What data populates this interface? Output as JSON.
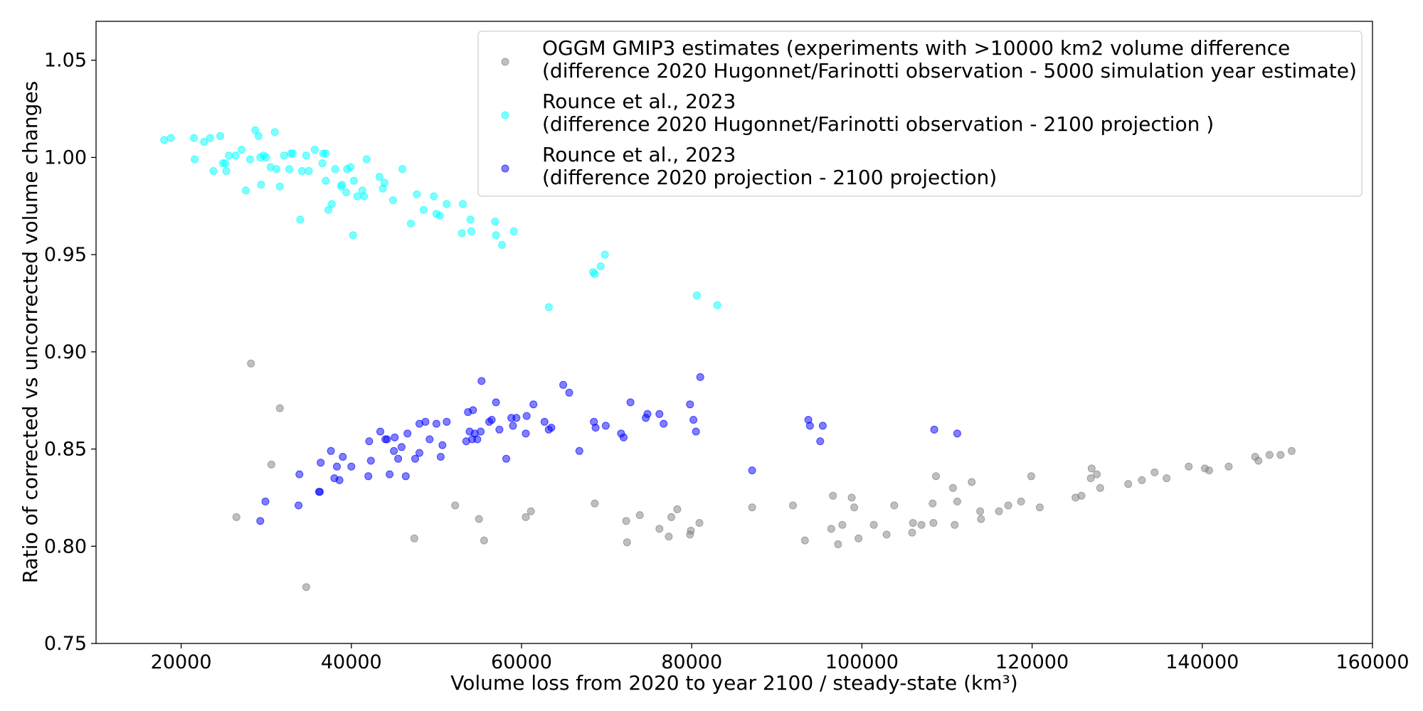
{
  "chart_data": {
    "type": "scatter",
    "title": "",
    "xlabel": "Volume loss from 2020 to year 2100 / steady-state (km³)",
    "ylabel": "Ratio of corrected vs uncorrected volume changes",
    "xlim": [
      10000,
      160000
    ],
    "ylim": [
      0.75,
      1.07
    ],
    "xticks": [
      20000,
      40000,
      60000,
      80000,
      100000,
      120000,
      140000,
      160000
    ],
    "yticks": [
      0.75,
      0.8,
      0.85,
      0.9,
      0.95,
      1.0,
      1.05
    ],
    "xtick_labels": [
      "20000",
      "40000",
      "60000",
      "80000",
      "100000",
      "120000",
      "140000",
      "160000"
    ],
    "ytick_labels": [
      "0.75",
      "0.80",
      "0.85",
      "0.90",
      "0.95",
      "1.00",
      "1.05"
    ],
    "grid": false,
    "legend_position": "top-right",
    "series": [
      {
        "name_lines": [
          "OGGM GMIP3 estimates (experiments with >10000 km2 volume difference",
          "(difference 2020 Hugonnet/Farinotti observation - 5000 simulation year estimate)"
        ],
        "color": "#808080",
        "points": [
          [
            26500,
            0.815
          ],
          [
            28200,
            0.894
          ],
          [
            30600,
            0.842
          ],
          [
            31600,
            0.871
          ],
          [
            34700,
            0.779
          ],
          [
            47400,
            0.804
          ],
          [
            52200,
            0.821
          ],
          [
            55000,
            0.814
          ],
          [
            55600,
            0.803
          ],
          [
            60500,
            0.815
          ],
          [
            61100,
            0.818
          ],
          [
            68600,
            0.822
          ],
          [
            72300,
            0.813
          ],
          [
            72400,
            0.802
          ],
          [
            73900,
            0.816
          ],
          [
            76200,
            0.809
          ],
          [
            77300,
            0.805
          ],
          [
            77600,
            0.815
          ],
          [
            78300,
            0.819
          ],
          [
            79800,
            0.806
          ],
          [
            79900,
            0.808
          ],
          [
            80900,
            0.812
          ],
          [
            87100,
            0.82
          ],
          [
            91900,
            0.821
          ],
          [
            93300,
            0.803
          ],
          [
            96400,
            0.809
          ],
          [
            96600,
            0.826
          ],
          [
            97200,
            0.801
          ],
          [
            97700,
            0.811
          ],
          [
            98800,
            0.825
          ],
          [
            99100,
            0.82
          ],
          [
            99600,
            0.804
          ],
          [
            101400,
            0.811
          ],
          [
            102900,
            0.806
          ],
          [
            103800,
            0.821
          ],
          [
            105900,
            0.807
          ],
          [
            106000,
            0.812
          ],
          [
            107000,
            0.811
          ],
          [
            108300,
            0.822
          ],
          [
            108400,
            0.812
          ],
          [
            108700,
            0.836
          ],
          [
            110700,
            0.83
          ],
          [
            110900,
            0.811
          ],
          [
            111200,
            0.823
          ],
          [
            112900,
            0.833
          ],
          [
            113900,
            0.818
          ],
          [
            114000,
            0.814
          ],
          [
            116100,
            0.818
          ],
          [
            117200,
            0.821
          ],
          [
            118700,
            0.823
          ],
          [
            119900,
            0.836
          ],
          [
            120900,
            0.82
          ],
          [
            125100,
            0.825
          ],
          [
            125800,
            0.826
          ],
          [
            126900,
            0.835
          ],
          [
            127000,
            0.84
          ],
          [
            127600,
            0.837
          ],
          [
            128000,
            0.83
          ],
          [
            131300,
            0.832
          ],
          [
            132900,
            0.834
          ],
          [
            134400,
            0.838
          ],
          [
            135800,
            0.835
          ],
          [
            138400,
            0.841
          ],
          [
            140300,
            0.84
          ],
          [
            140800,
            0.839
          ],
          [
            143100,
            0.841
          ],
          [
            146200,
            0.846
          ],
          [
            146600,
            0.844
          ],
          [
            147900,
            0.847
          ],
          [
            149200,
            0.847
          ],
          [
            150500,
            0.849
          ]
        ]
      },
      {
        "name_lines": [
          "Rounce et al., 2023",
          "(difference 2020 Hugonnet/Farinotti observation - 2100 projection )"
        ],
        "color": "#00FFFF",
        "points": [
          [
            18000,
            1.009
          ],
          [
            18800,
            1.01
          ],
          [
            21500,
            1.01
          ],
          [
            21600,
            0.999
          ],
          [
            22700,
            1.008
          ],
          [
            23400,
            1.01
          ],
          [
            23800,
            0.993
          ],
          [
            24600,
            1.011
          ],
          [
            24900,
            0.997
          ],
          [
            25200,
            0.997
          ],
          [
            25300,
            0.993
          ],
          [
            25600,
            1.001
          ],
          [
            26400,
            1.001
          ],
          [
            27100,
            1.004
          ],
          [
            27600,
            0.983
          ],
          [
            28100,
            0.999
          ],
          [
            28700,
            1.014
          ],
          [
            29100,
            1.011
          ],
          [
            29300,
            1.0
          ],
          [
            29400,
            0.986
          ],
          [
            29700,
            1.001
          ],
          [
            30000,
            1.0
          ],
          [
            30500,
            0.995
          ],
          [
            31000,
            1.013
          ],
          [
            31200,
            0.994
          ],
          [
            31600,
            0.985
          ],
          [
            32100,
            1.001
          ],
          [
            32700,
            0.994
          ],
          [
            32900,
            1.002
          ],
          [
            33100,
            1.002
          ],
          [
            34000,
            0.968
          ],
          [
            34200,
            0.993
          ],
          [
            34700,
            1.001
          ],
          [
            35000,
            0.993
          ],
          [
            35700,
            1.004
          ],
          [
            36600,
            0.997
          ],
          [
            36700,
            1.002
          ],
          [
            37000,
            0.988
          ],
          [
            37000,
            1.002
          ],
          [
            37300,
            0.973
          ],
          [
            37700,
            0.976
          ],
          [
            38100,
            0.994
          ],
          [
            38800,
            0.985
          ],
          [
            38900,
            0.986
          ],
          [
            39400,
            0.982
          ],
          [
            39500,
            0.994
          ],
          [
            39900,
            0.995
          ],
          [
            40200,
            0.96
          ],
          [
            40300,
            0.988
          ],
          [
            40700,
            0.98
          ],
          [
            41300,
            0.983
          ],
          [
            41500,
            0.98
          ],
          [
            41800,
            0.999
          ],
          [
            43300,
            0.99
          ],
          [
            43700,
            0.984
          ],
          [
            43900,
            0.987
          ],
          [
            44900,
            0.978
          ],
          [
            46000,
            0.994
          ],
          [
            47000,
            0.966
          ],
          [
            47700,
            0.981
          ],
          [
            48500,
            0.973
          ],
          [
            49700,
            0.98
          ],
          [
            50000,
            0.971
          ],
          [
            50400,
            0.97
          ],
          [
            51200,
            0.976
          ],
          [
            53000,
            0.961
          ],
          [
            53100,
            0.976
          ],
          [
            54000,
            0.968
          ],
          [
            54100,
            0.962
          ],
          [
            56900,
            0.967
          ],
          [
            57000,
            0.96
          ],
          [
            57700,
            0.955
          ],
          [
            59100,
            0.962
          ],
          [
            63200,
            0.923
          ],
          [
            68400,
            0.941
          ],
          [
            68600,
            0.94
          ],
          [
            69300,
            0.944
          ],
          [
            69800,
            0.95
          ],
          [
            80600,
            0.929
          ],
          [
            83000,
            0.924
          ]
        ]
      },
      {
        "name_lines": [
          "Rounce et al., 2023",
          "(difference 2020 projection - 2100 projection)"
        ],
        "color": "#0000FF",
        "points": [
          [
            29300,
            0.813
          ],
          [
            29900,
            0.823
          ],
          [
            33800,
            0.821
          ],
          [
            33900,
            0.837
          ],
          [
            36200,
            0.828
          ],
          [
            36300,
            0.828
          ],
          [
            36400,
            0.843
          ],
          [
            37600,
            0.849
          ],
          [
            38000,
            0.835
          ],
          [
            38300,
            0.841
          ],
          [
            38600,
            0.834
          ],
          [
            39000,
            0.846
          ],
          [
            40000,
            0.841
          ],
          [
            42000,
            0.836
          ],
          [
            42100,
            0.854
          ],
          [
            42300,
            0.844
          ],
          [
            43400,
            0.859
          ],
          [
            44000,
            0.855
          ],
          [
            44200,
            0.855
          ],
          [
            44500,
            0.837
          ],
          [
            45000,
            0.849
          ],
          [
            45100,
            0.856
          ],
          [
            45500,
            0.845
          ],
          [
            45900,
            0.851
          ],
          [
            46400,
            0.836
          ],
          [
            46600,
            0.858
          ],
          [
            47500,
            0.845
          ],
          [
            48000,
            0.848
          ],
          [
            48000,
            0.863
          ],
          [
            48700,
            0.864
          ],
          [
            49200,
            0.855
          ],
          [
            50000,
            0.863
          ],
          [
            50500,
            0.846
          ],
          [
            50700,
            0.852
          ],
          [
            51200,
            0.864
          ],
          [
            53500,
            0.854
          ],
          [
            53700,
            0.869
          ],
          [
            53900,
            0.859
          ],
          [
            54200,
            0.855
          ],
          [
            54300,
            0.87
          ],
          [
            54500,
            0.858
          ],
          [
            54800,
            0.855
          ],
          [
            55200,
            0.859
          ],
          [
            55300,
            0.885
          ],
          [
            56200,
            0.864
          ],
          [
            56500,
            0.865
          ],
          [
            57000,
            0.874
          ],
          [
            57400,
            0.86
          ],
          [
            58200,
            0.845
          ],
          [
            58800,
            0.866
          ],
          [
            59000,
            0.862
          ],
          [
            59400,
            0.866
          ],
          [
            60500,
            0.858
          ],
          [
            60600,
            0.867
          ],
          [
            61400,
            0.873
          ],
          [
            62700,
            0.864
          ],
          [
            63200,
            0.86
          ],
          [
            63500,
            0.861
          ],
          [
            64900,
            0.883
          ],
          [
            65600,
            0.879
          ],
          [
            66800,
            0.849
          ],
          [
            68500,
            0.864
          ],
          [
            68700,
            0.861
          ],
          [
            69900,
            0.862
          ],
          [
            71700,
            0.858
          ],
          [
            72000,
            0.856
          ],
          [
            72800,
            0.874
          ],
          [
            74600,
            0.866
          ],
          [
            74800,
            0.868
          ],
          [
            76200,
            0.868
          ],
          [
            76700,
            0.863
          ],
          [
            79800,
            0.873
          ],
          [
            80200,
            0.865
          ],
          [
            80500,
            0.859
          ],
          [
            81000,
            0.887
          ],
          [
            87100,
            0.839
          ],
          [
            93700,
            0.865
          ],
          [
            93900,
            0.862
          ],
          [
            95100,
            0.854
          ],
          [
            95400,
            0.862
          ],
          [
            108500,
            0.86
          ],
          [
            111200,
            0.858
          ]
        ]
      }
    ]
  }
}
